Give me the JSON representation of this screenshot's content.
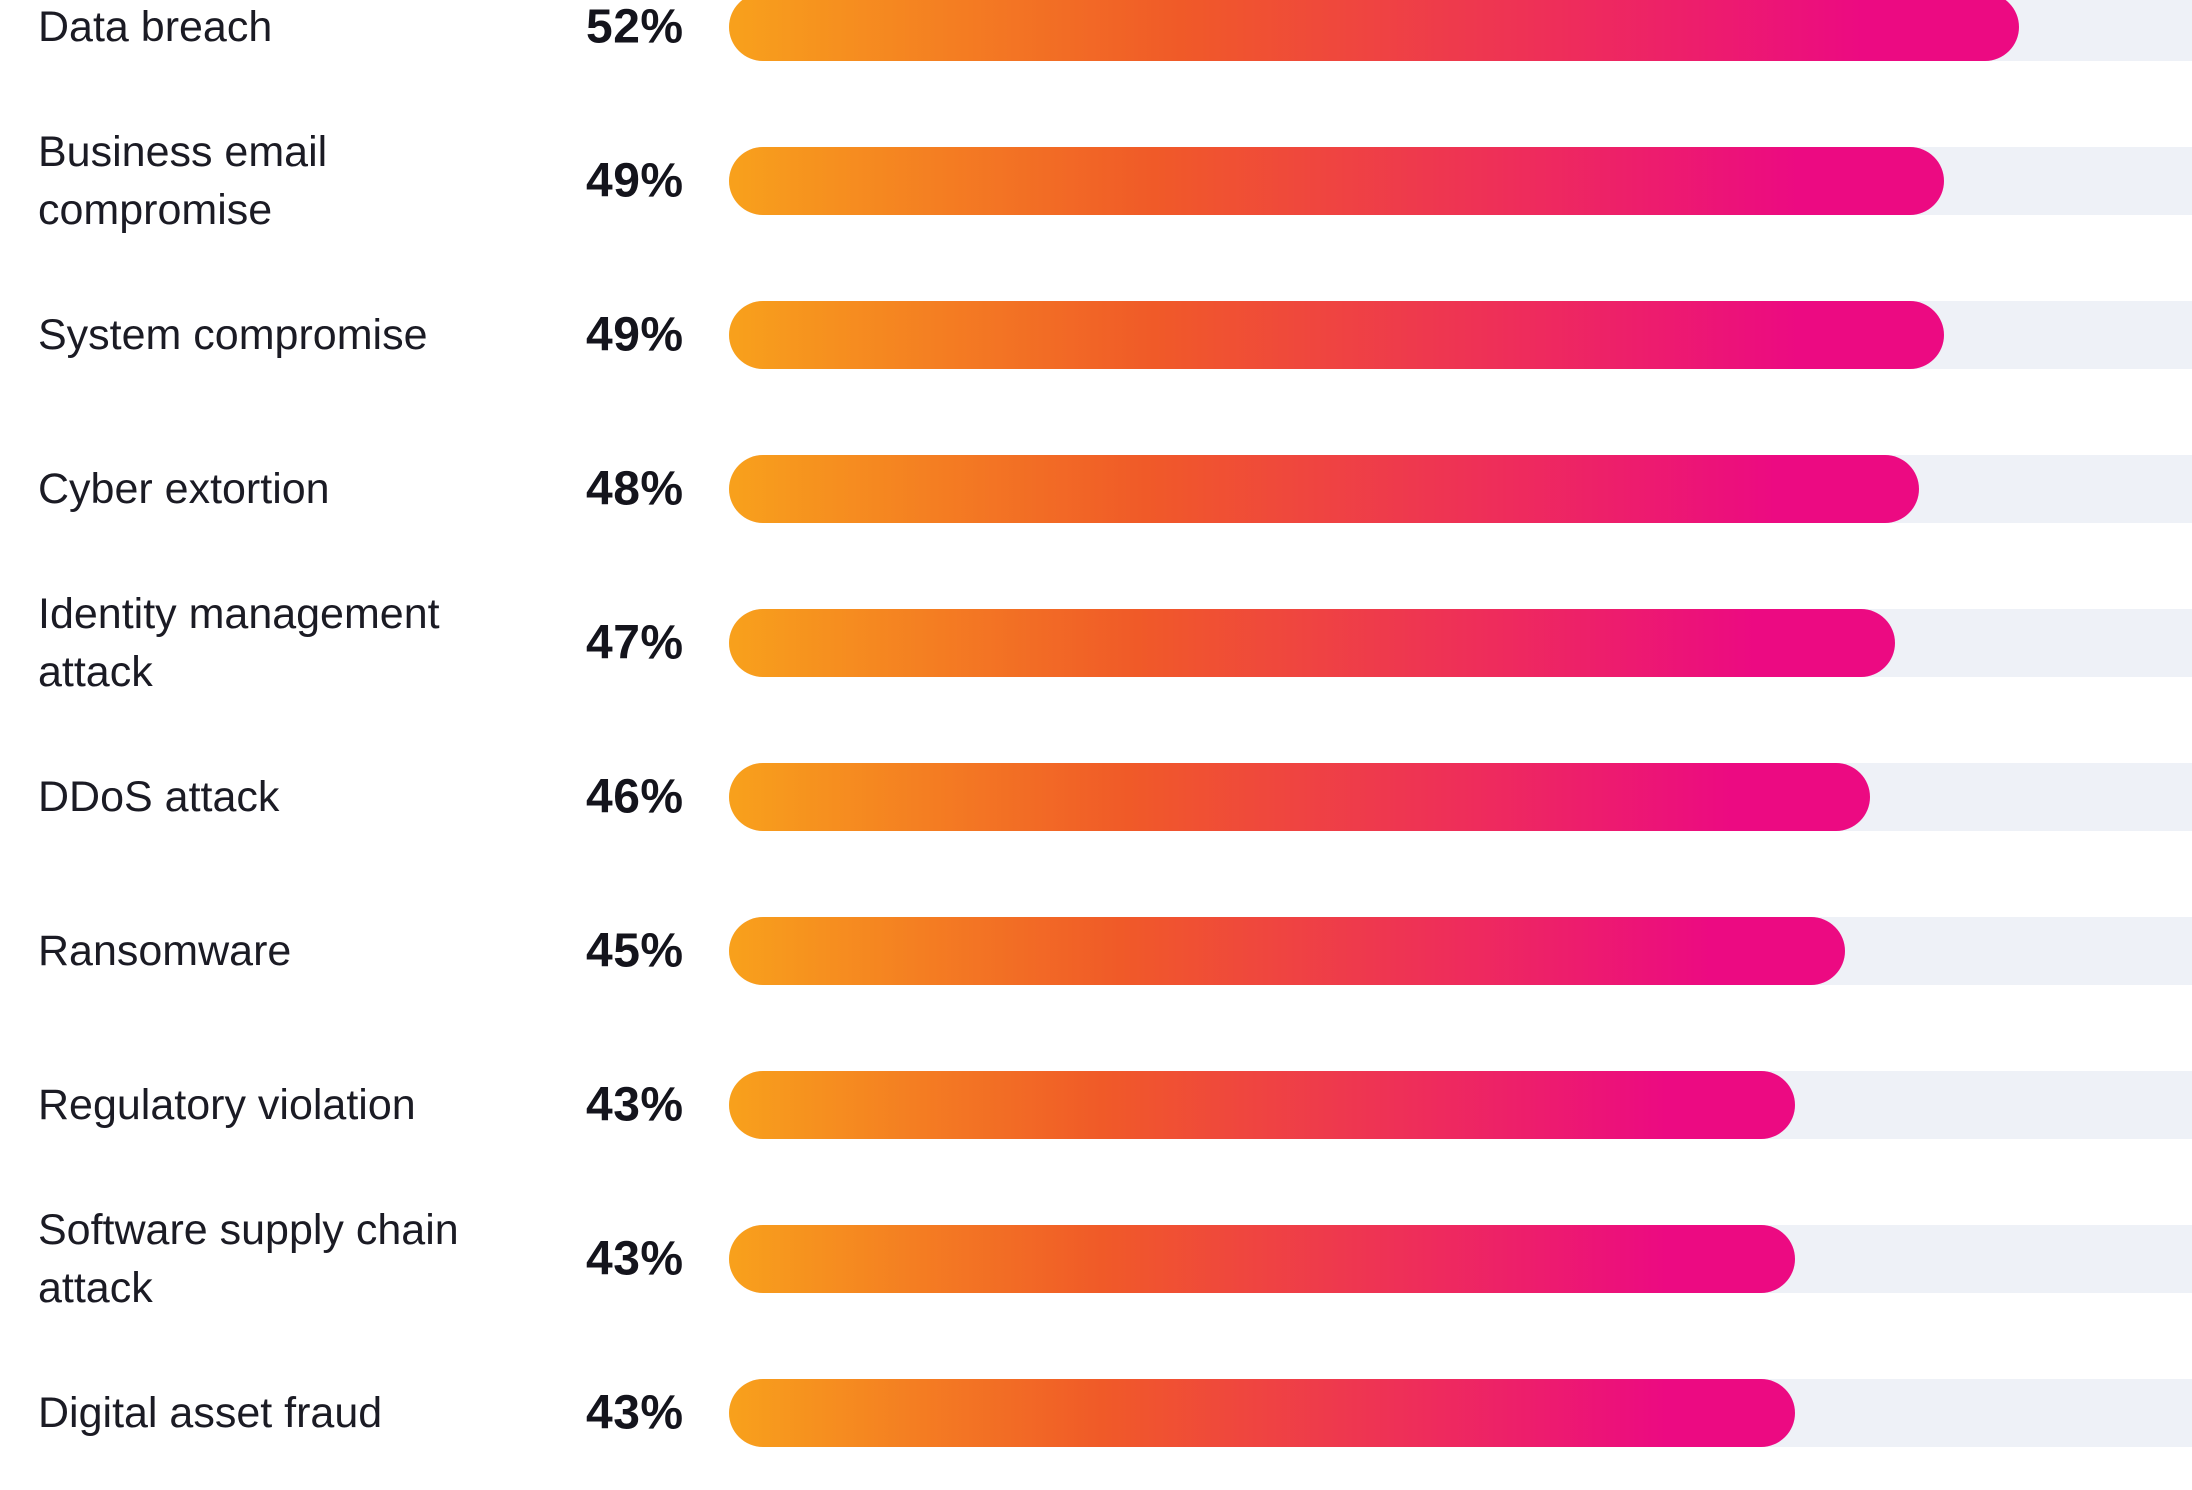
{
  "chart_data": {
    "type": "bar",
    "orientation": "horizontal",
    "categories": [
      "Data breach",
      "Business email compromise",
      "System compromise",
      "Cyber extortion",
      "Identity management attack",
      "DDoS attack",
      "Ransomware",
      "Regulatory violation",
      "Software supply chain attack",
      "Digital asset fraud"
    ],
    "values": [
      52,
      49,
      49,
      48,
      47,
      46,
      45,
      43,
      43,
      43
    ],
    "value_labels": [
      "52%",
      "49%",
      "49%",
      "48%",
      "47%",
      "46%",
      "45%",
      "43%",
      "43%",
      "43%"
    ],
    "unit": "%",
    "xlim": [
      0,
      100
    ],
    "grid": false,
    "legend": "none"
  },
  "colors": {
    "bar_gradient_start": "#f8a11c",
    "bar_gradient_mid": "#f05a28",
    "bar_gradient_end": "#ec0a82",
    "track": "#eef1f7",
    "label_text": "#1b1b24",
    "value_text": "#14141c"
  }
}
